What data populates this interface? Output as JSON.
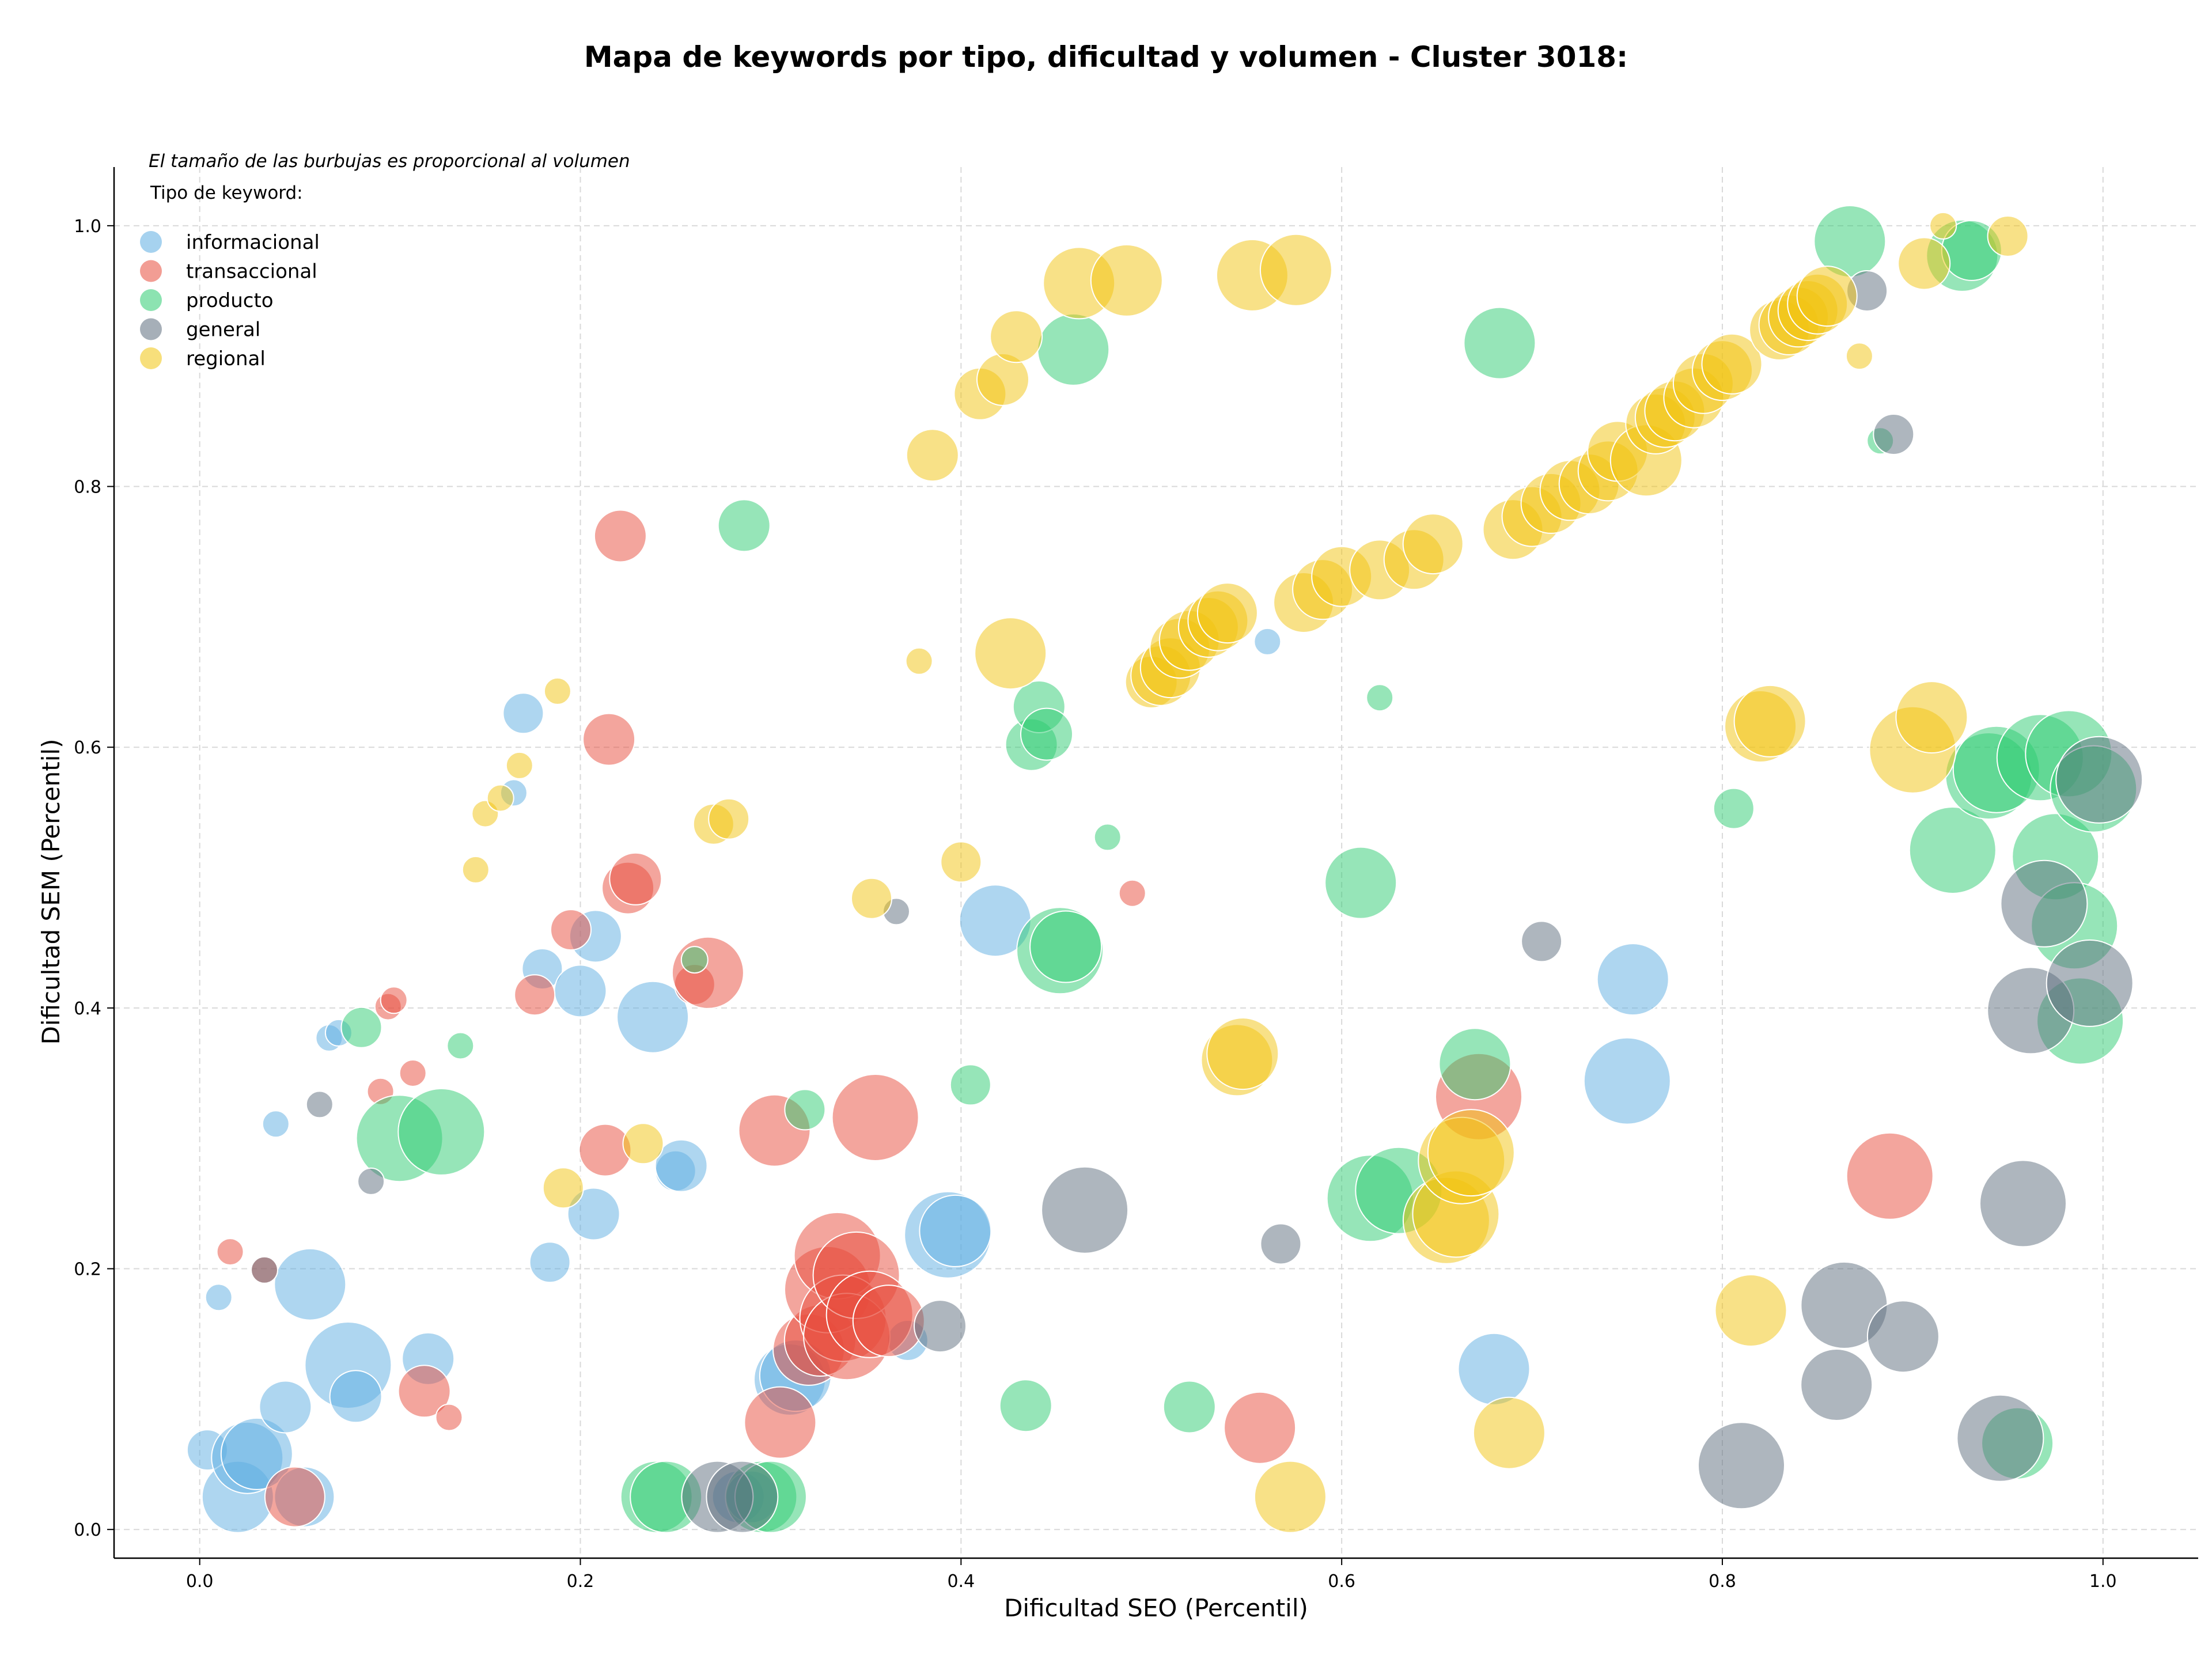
{
  "chart_data": {
    "type": "scatter",
    "title": "Mapa de keywords por tipo, dificultad y volumen - Cluster 3018:",
    "xlabel": "Dificultad SEO (Percentil)",
    "ylabel": "Dificultad SEM (Percentil)",
    "xlim": [
      -0.045,
      1.05
    ],
    "ylim": [
      -0.022,
      1.045
    ],
    "xticks": [
      "0.0",
      "0.2",
      "0.4",
      "0.6",
      "0.8",
      "1.0"
    ],
    "yticks": [
      "0.0",
      "0.2",
      "0.4",
      "0.6",
      "0.8",
      "1.0"
    ],
    "grid": true,
    "bubble_note": "El tamaño de las burbujas es proporcional al volumen",
    "legend_title": "Tipo de keyword:",
    "legend_position": "top-left",
    "series": [
      {
        "name": "informacional",
        "color": "#5DADE2",
        "points": [
          [
            0.004,
            0.061,
            2
          ],
          [
            0.02,
            0.025,
            5
          ],
          [
            0.025,
            0.055,
            5
          ],
          [
            0.03,
            0.058,
            5
          ],
          [
            0.045,
            0.094,
            3
          ],
          [
            0.055,
            0.025,
            4
          ],
          [
            0.01,
            0.178,
            1
          ],
          [
            0.04,
            0.311,
            1
          ],
          [
            0.058,
            0.188,
            5
          ],
          [
            0.078,
            0.126,
            6
          ],
          [
            0.082,
            0.102,
            3
          ],
          [
            0.068,
            0.377,
            1
          ],
          [
            0.073,
            0.381,
            1
          ],
          [
            0.12,
            0.131,
            3
          ],
          [
            0.17,
            0.626,
            2
          ],
          [
            0.165,
            0.565,
            1
          ],
          [
            0.18,
            0.43,
            2
          ],
          [
            0.2,
            0.413,
            3
          ],
          [
            0.208,
            0.455,
            3
          ],
          [
            0.207,
            0.242,
            3
          ],
          [
            0.184,
            0.205,
            2
          ],
          [
            0.238,
            0.393,
            5
          ],
          [
            0.25,
            0.275,
            2
          ],
          [
            0.253,
            0.279,
            3
          ],
          [
            0.31,
            0.115,
            5
          ],
          [
            0.313,
            0.118,
            5
          ],
          [
            0.372,
            0.145,
            2
          ],
          [
            0.393,
            0.226,
            6
          ],
          [
            0.397,
            0.229,
            5
          ],
          [
            0.418,
            0.467,
            5
          ],
          [
            0.561,
            0.681,
            1
          ],
          [
            0.68,
            0.123,
            5
          ],
          [
            0.75,
            0.344,
            6
          ],
          [
            0.753,
            0.422,
            5
          ],
          [
            0.283,
            0.025,
            3
          ],
          [
            0.29,
            0.025,
            3
          ]
        ]
      },
      {
        "name": "transaccional",
        "color": "#E74C3C",
        "points": [
          [
            0.016,
            0.213,
            1
          ],
          [
            0.034,
            0.199,
            1
          ],
          [
            0.05,
            0.025,
            4
          ],
          [
            0.095,
            0.336,
            1
          ],
          [
            0.099,
            0.401,
            1
          ],
          [
            0.102,
            0.406,
            1
          ],
          [
            0.112,
            0.35,
            1
          ],
          [
            0.118,
            0.106,
            3
          ],
          [
            0.131,
            0.086,
            1
          ],
          [
            0.176,
            0.41,
            2
          ],
          [
            0.195,
            0.46,
            2
          ],
          [
            0.213,
            0.291,
            3
          ],
          [
            0.215,
            0.606,
            3
          ],
          [
            0.221,
            0.762,
            3
          ],
          [
            0.225,
            0.492,
            3
          ],
          [
            0.229,
            0.499,
            3
          ],
          [
            0.26,
            0.418,
            2
          ],
          [
            0.267,
            0.427,
            5
          ],
          [
            0.302,
            0.306,
            5
          ],
          [
            0.305,
            0.082,
            5
          ],
          [
            0.32,
            0.138,
            5
          ],
          [
            0.326,
            0.145,
            5
          ],
          [
            0.33,
            0.184,
            6
          ],
          [
            0.335,
            0.21,
            6
          ],
          [
            0.338,
            0.162,
            6
          ],
          [
            0.34,
            0.148,
            6
          ],
          [
            0.345,
            0.195,
            6
          ],
          [
            0.352,
            0.165,
            6
          ],
          [
            0.355,
            0.316,
            6
          ],
          [
            0.362,
            0.16,
            5
          ],
          [
            0.49,
            0.488,
            1
          ],
          [
            0.557,
            0.078,
            5
          ],
          [
            0.672,
            0.332,
            6
          ],
          [
            0.888,
            0.271,
            6
          ]
        ]
      },
      {
        "name": "producto",
        "color": "#2ECC71",
        "points": [
          [
            0.085,
            0.385,
            2
          ],
          [
            0.105,
            0.3,
            6
          ],
          [
            0.127,
            0.305,
            6
          ],
          [
            0.137,
            0.371,
            1
          ],
          [
            0.26,
            0.437,
            1
          ],
          [
            0.286,
            0.77,
            3
          ],
          [
            0.318,
            0.322,
            2
          ],
          [
            0.24,
            0.025,
            5
          ],
          [
            0.245,
            0.025,
            5
          ],
          [
            0.295,
            0.025,
            5
          ],
          [
            0.3,
            0.025,
            5
          ],
          [
            0.405,
            0.341,
            2
          ],
          [
            0.434,
            0.095,
            3
          ],
          [
            0.437,
            0.602,
            3
          ],
          [
            0.441,
            0.631,
            3
          ],
          [
            0.445,
            0.61,
            3
          ],
          [
            0.452,
            0.444,
            6
          ],
          [
            0.455,
            0.447,
            5
          ],
          [
            0.459,
            0.905,
            5
          ],
          [
            0.477,
            0.531,
            1
          ],
          [
            0.52,
            0.094,
            3
          ],
          [
            0.61,
            0.496,
            5
          ],
          [
            0.62,
            0.638,
            1
          ],
          [
            0.615,
            0.254,
            6
          ],
          [
            0.63,
            0.26,
            6
          ],
          [
            0.67,
            0.357,
            5
          ],
          [
            0.683,
            0.91,
            5
          ],
          [
            0.806,
            0.553,
            2
          ],
          [
            0.867,
            0.988,
            5
          ],
          [
            0.883,
            0.835,
            1
          ],
          [
            0.921,
            0.521,
            6
          ],
          [
            0.926,
            0.977,
            5
          ],
          [
            0.931,
            0.981,
            4
          ],
          [
            0.94,
            0.578,
            6
          ],
          [
            0.944,
            0.583,
            6
          ],
          [
            0.955,
            0.066,
            5
          ],
          [
            0.967,
            0.592,
            6
          ],
          [
            0.975,
            0.516,
            6
          ],
          [
            0.982,
            0.595,
            6
          ],
          [
            0.985,
            0.463,
            6
          ],
          [
            0.988,
            0.39,
            6
          ],
          [
            0.995,
            0.568,
            6
          ]
        ]
      },
      {
        "name": "general",
        "color": "#5D6D7E",
        "points": [
          [
            0.063,
            0.326,
            1
          ],
          [
            0.09,
            0.267,
            1
          ],
          [
            0.034,
            0.199,
            1
          ],
          [
            0.366,
            0.474,
            1
          ],
          [
            0.389,
            0.156,
            3
          ],
          [
            0.465,
            0.245,
            6
          ],
          [
            0.568,
            0.219,
            2
          ],
          [
            0.705,
            0.451,
            2
          ],
          [
            0.81,
            0.049,
            6
          ],
          [
            0.86,
            0.111,
            5
          ],
          [
            0.864,
            0.172,
            6
          ],
          [
            0.876,
            0.95,
            2
          ],
          [
            0.89,
            0.84,
            2
          ],
          [
            0.895,
            0.148,
            5
          ],
          [
            0.946,
            0.07,
            6
          ],
          [
            0.958,
            0.25,
            6
          ],
          [
            0.962,
            0.398,
            6
          ],
          [
            0.969,
            0.48,
            6
          ],
          [
            0.993,
            0.419,
            6
          ],
          [
            0.998,
            0.575,
            6
          ],
          [
            0.272,
            0.025,
            5
          ],
          [
            0.285,
            0.025,
            5
          ]
        ]
      },
      {
        "name": "regional",
        "color": "#F1C40F",
        "points": [
          [
            0.145,
            0.506,
            1
          ],
          [
            0.15,
            0.549,
            1
          ],
          [
            0.158,
            0.561,
            1
          ],
          [
            0.168,
            0.586,
            1
          ],
          [
            0.188,
            0.643,
            1
          ],
          [
            0.191,
            0.262,
            2
          ],
          [
            0.233,
            0.296,
            2
          ],
          [
            0.27,
            0.541,
            2
          ],
          [
            0.278,
            0.545,
            2
          ],
          [
            0.353,
            0.484,
            2
          ],
          [
            0.378,
            0.666,
            1
          ],
          [
            0.385,
            0.824,
            3
          ],
          [
            0.4,
            0.512,
            2
          ],
          [
            0.41,
            0.871,
            3
          ],
          [
            0.422,
            0.882,
            3
          ],
          [
            0.426,
            0.672,
            5
          ],
          [
            0.429,
            0.915,
            3
          ],
          [
            0.462,
            0.956,
            5
          ],
          [
            0.487,
            0.958,
            5
          ],
          [
            0.5,
            0.65,
            3
          ],
          [
            0.505,
            0.655,
            4
          ],
          [
            0.51,
            0.661,
            4
          ],
          [
            0.515,
            0.676,
            4
          ],
          [
            0.52,
            0.682,
            4
          ],
          [
            0.53,
            0.692,
            4
          ],
          [
            0.535,
            0.697,
            4
          ],
          [
            0.54,
            0.703,
            4
          ],
          [
            0.545,
            0.36,
            5
          ],
          [
            0.548,
            0.365,
            5
          ],
          [
            0.553,
            0.962,
            5
          ],
          [
            0.573,
            0.025,
            5
          ],
          [
            0.576,
            0.966,
            5
          ],
          [
            0.58,
            0.711,
            4
          ],
          [
            0.59,
            0.721,
            4
          ],
          [
            0.6,
            0.731,
            4
          ],
          [
            0.62,
            0.736,
            4
          ],
          [
            0.638,
            0.744,
            4
          ],
          [
            0.648,
            0.756,
            4
          ],
          [
            0.655,
            0.237,
            6
          ],
          [
            0.66,
            0.242,
            6
          ],
          [
            0.663,
            0.283,
            6
          ],
          [
            0.668,
            0.289,
            6
          ],
          [
            0.688,
            0.074,
            5
          ],
          [
            0.69,
            0.767,
            4
          ],
          [
            0.7,
            0.777,
            4
          ],
          [
            0.71,
            0.787,
            4
          ],
          [
            0.72,
            0.797,
            4
          ],
          [
            0.73,
            0.802,
            4
          ],
          [
            0.74,
            0.812,
            4
          ],
          [
            0.745,
            0.827,
            4
          ],
          [
            0.76,
            0.82,
            5
          ],
          [
            0.765,
            0.848,
            4
          ],
          [
            0.77,
            0.853,
            4
          ],
          [
            0.775,
            0.858,
            4
          ],
          [
            0.785,
            0.868,
            4
          ],
          [
            0.79,
            0.879,
            4
          ],
          [
            0.8,
            0.889,
            4
          ],
          [
            0.805,
            0.894,
            4
          ],
          [
            0.815,
            0.168,
            5
          ],
          [
            0.82,
            0.616,
            5
          ],
          [
            0.825,
            0.62,
            5
          ],
          [
            0.83,
            0.92,
            4
          ],
          [
            0.835,
            0.924,
            4
          ],
          [
            0.84,
            0.93,
            4
          ],
          [
            0.845,
            0.935,
            4
          ],
          [
            0.85,
            0.94,
            4
          ],
          [
            0.855,
            0.946,
            4
          ],
          [
            0.872,
            0.9,
            1
          ],
          [
            0.9,
            0.598,
            6
          ],
          [
            0.906,
            0.971,
            3
          ],
          [
            0.91,
            0.623,
            5
          ],
          [
            0.916,
            1.0,
            1
          ],
          [
            0.95,
            0.992,
            2
          ]
        ]
      }
    ]
  }
}
